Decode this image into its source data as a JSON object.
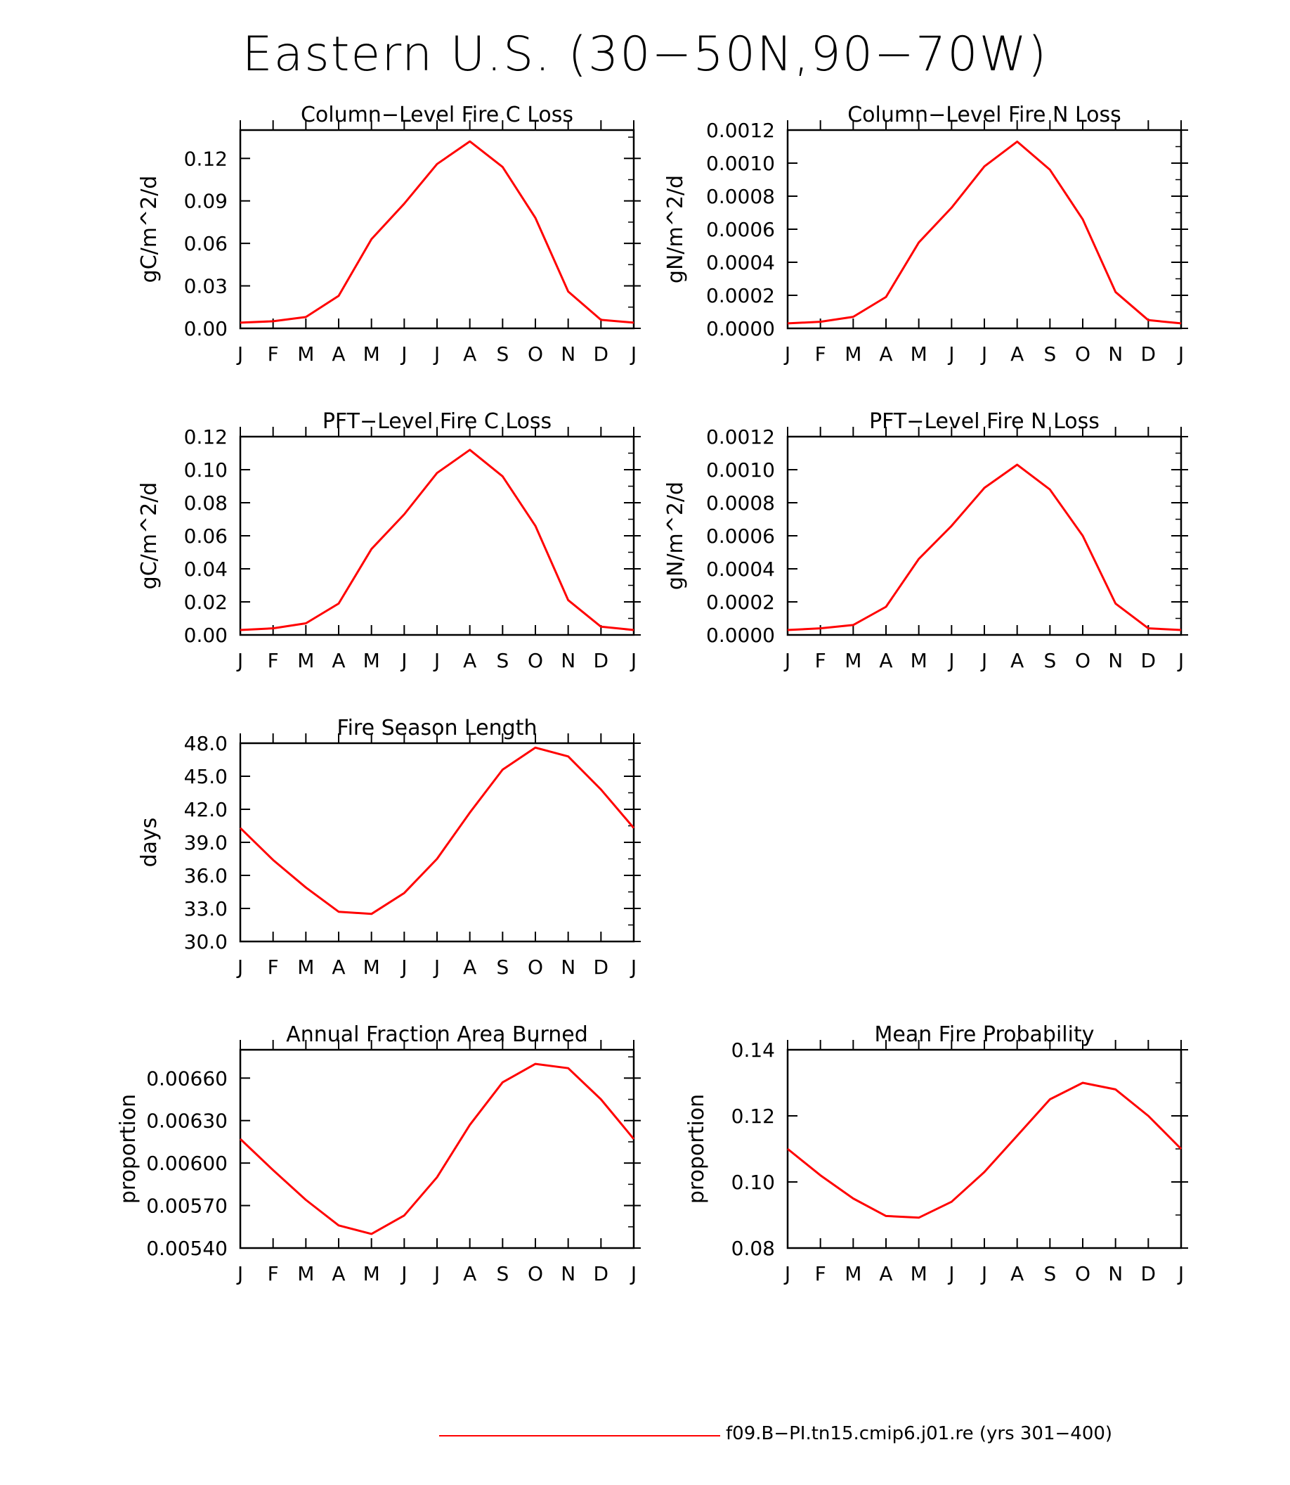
{
  "title": "Eastern U.S. (30−50N,90−70W)",
  "line_color": "#ff0000",
  "legend": {
    "label": "f09.B−PI.tn15.cmip6.j01.re (yrs 301−400)"
  },
  "month_ticks": [
    "J",
    "F",
    "M",
    "A",
    "M",
    "J",
    "J",
    "A",
    "S",
    "O",
    "N",
    "D",
    "J"
  ],
  "chart_data": [
    {
      "type": "line",
      "title": "Column−Level Fire C Loss",
      "ylabel": "gC/m^2/d",
      "ylim": [
        0,
        0.14
      ],
      "yticks": [
        0.0,
        0.03,
        0.06,
        0.09,
        0.12
      ],
      "ytick_labels": [
        "0.00",
        "0.03",
        "0.06",
        "0.09",
        "0.12"
      ],
      "x": [
        "J",
        "F",
        "M",
        "A",
        "M",
        "J",
        "J",
        "A",
        "S",
        "O",
        "N",
        "D",
        "J"
      ],
      "series": [
        {
          "values": [
            0.004,
            0.005,
            0.008,
            0.023,
            0.063,
            0.088,
            0.116,
            0.132,
            0.114,
            0.078,
            0.026,
            0.006,
            0.004
          ]
        }
      ]
    },
    {
      "type": "line",
      "title": "Column−Level Fire N Loss",
      "ylabel": "gN/m^2/d",
      "ylim": [
        0,
        0.0012
      ],
      "yticks": [
        0,
        0.0002,
        0.0004,
        0.0006,
        0.0008,
        0.001,
        0.0012
      ],
      "ytick_labels": [
        "0.0000",
        "0.0002",
        "0.0004",
        "0.0006",
        "0.0008",
        "0.0010",
        "0.0012"
      ],
      "x": [
        "J",
        "F",
        "M",
        "A",
        "M",
        "J",
        "J",
        "A",
        "S",
        "O",
        "N",
        "D",
        "J"
      ],
      "series": [
        {
          "values": [
            3e-05,
            4e-05,
            7e-05,
            0.00019,
            0.00052,
            0.00073,
            0.00098,
            0.00113,
            0.00096,
            0.00066,
            0.00022,
            5e-05,
            3e-05
          ]
        }
      ]
    },
    {
      "type": "line",
      "title": "PFT−Level Fire C Loss",
      "ylabel": "gC/m^2/d",
      "ylim": [
        0,
        0.12
      ],
      "yticks": [
        0.0,
        0.02,
        0.04,
        0.06,
        0.08,
        0.1,
        0.12
      ],
      "ytick_labels": [
        "0.00",
        "0.02",
        "0.04",
        "0.06",
        "0.08",
        "0.10",
        "0.12"
      ],
      "x": [
        "J",
        "F",
        "M",
        "A",
        "M",
        "J",
        "J",
        "A",
        "S",
        "O",
        "N",
        "D",
        "J"
      ],
      "series": [
        {
          "values": [
            0.003,
            0.004,
            0.007,
            0.019,
            0.052,
            0.073,
            0.098,
            0.112,
            0.096,
            0.066,
            0.021,
            0.005,
            0.003
          ]
        }
      ]
    },
    {
      "type": "line",
      "title": "PFT−Level Fire N Loss",
      "ylabel": "gN/m^2/d",
      "ylim": [
        0,
        0.0012
      ],
      "yticks": [
        0,
        0.0002,
        0.0004,
        0.0006,
        0.0008,
        0.001,
        0.0012
      ],
      "ytick_labels": [
        "0.0000",
        "0.0002",
        "0.0004",
        "0.0006",
        "0.0008",
        "0.0010",
        "0.0012"
      ],
      "x": [
        "J",
        "F",
        "M",
        "A",
        "M",
        "J",
        "J",
        "A",
        "S",
        "O",
        "N",
        "D",
        "J"
      ],
      "series": [
        {
          "values": [
            3e-05,
            4e-05,
            6e-05,
            0.00017,
            0.00046,
            0.00066,
            0.00089,
            0.00103,
            0.00088,
            0.0006,
            0.00019,
            4e-05,
            3e-05
          ]
        }
      ]
    },
    {
      "type": "line",
      "title": "Fire Season Length",
      "ylabel": "days",
      "ylim": [
        30,
        48
      ],
      "yticks": [
        30,
        33,
        36,
        39,
        42,
        45,
        48
      ],
      "ytick_labels": [
        "30.0",
        "33.0",
        "36.0",
        "39.0",
        "42.0",
        "45.0",
        "48.0"
      ],
      "x": [
        "J",
        "F",
        "M",
        "A",
        "M",
        "J",
        "J",
        "A",
        "S",
        "O",
        "N",
        "D",
        "J"
      ],
      "series": [
        {
          "values": [
            40.3,
            37.4,
            34.9,
            32.7,
            32.5,
            34.4,
            37.5,
            41.7,
            45.6,
            47.6,
            46.8,
            43.8,
            40.3
          ]
        }
      ]
    },
    {
      "type": "line",
      "title": "Annual Fraction Area Burned",
      "ylabel": "proportion",
      "ylim": [
        0.0054,
        0.0068
      ],
      "yticks": [
        0.0054,
        0.0057,
        0.006,
        0.0063,
        0.0066
      ],
      "ytick_labels": [
        "0.00540",
        "0.00570",
        "0.00600",
        "0.00630",
        "0.00660"
      ],
      "x": [
        "J",
        "F",
        "M",
        "A",
        "M",
        "J",
        "J",
        "A",
        "S",
        "O",
        "N",
        "D",
        "J"
      ],
      "series": [
        {
          "values": [
            0.00617,
            0.00595,
            0.00574,
            0.00556,
            0.0055,
            0.00563,
            0.0059,
            0.00627,
            0.00657,
            0.0067,
            0.00667,
            0.00645,
            0.00617
          ]
        }
      ]
    },
    {
      "type": "line",
      "title": "Mean Fire Probability",
      "ylabel": "proportion",
      "ylim": [
        0.08,
        0.14
      ],
      "yticks": [
        0.08,
        0.1,
        0.12,
        0.14
      ],
      "ytick_labels": [
        "0.08",
        "0.10",
        "0.12",
        "0.14"
      ],
      "x": [
        "J",
        "F",
        "M",
        "A",
        "M",
        "J",
        "J",
        "A",
        "S",
        "O",
        "N",
        "D",
        "J"
      ],
      "series": [
        {
          "values": [
            0.11,
            0.102,
            0.095,
            0.0897,
            0.0892,
            0.094,
            0.103,
            0.114,
            0.125,
            0.13,
            0.128,
            0.12,
            0.11
          ]
        }
      ]
    }
  ]
}
